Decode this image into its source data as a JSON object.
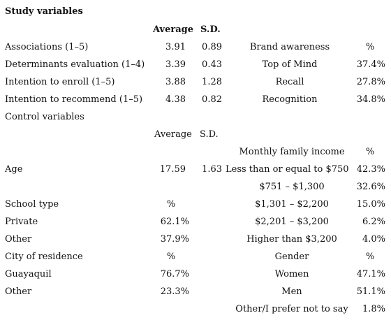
{
  "title": "Study variables",
  "study": {
    "header": {
      "average": "Average",
      "sd": "S.D."
    },
    "rows": [
      {
        "label": "Associations (1–5)",
        "average": "3.91",
        "sd": "0.89"
      },
      {
        "label": "Determinants evaluation (1–4)",
        "average": "3.39",
        "sd": "0.43"
      },
      {
        "label": "Intention to enroll (1–5)",
        "average": "3.88",
        "sd": "1.28"
      },
      {
        "label": "Intention to recommend (1–5)",
        "average": "4.38",
        "sd": "0.82"
      }
    ]
  },
  "brand_awareness": {
    "header": "Brand awareness",
    "pct_header": "%",
    "rows": [
      {
        "label": "Top of Mind",
        "pct": "37.4%"
      },
      {
        "label": "Recall",
        "pct": "27.8%"
      },
      {
        "label": "Recognition",
        "pct": "34.8%"
      }
    ]
  },
  "control": {
    "title": "Control variables",
    "header": {
      "average": "Average",
      "sd": "S.D."
    },
    "age": {
      "label": "Age",
      "average": "17.59",
      "sd": "1.63"
    }
  },
  "income": {
    "header": "Monthly family income",
    "pct_header": "%",
    "rows": [
      {
        "label": "Less than or equal to $750",
        "pct": "42.3%"
      },
      {
        "label": "$751 – $1,300",
        "pct": "32.6%"
      },
      {
        "label": "$1,301 – $2,200",
        "pct": "15.0%"
      },
      {
        "label": "$2,201 – $3,200",
        "pct": "6.2%"
      },
      {
        "label": "Higher than $3,200",
        "pct": "4.0%"
      }
    ]
  },
  "school": {
    "header": "School type",
    "pct_header": "%",
    "rows": [
      {
        "label": "Private",
        "pct": "62.1%"
      },
      {
        "label": "Other",
        "pct": "37.9%"
      }
    ]
  },
  "city": {
    "header": "City of residence",
    "pct_header": "%",
    "rows": [
      {
        "label": "Guayaquil",
        "pct": "76.7%"
      },
      {
        "label": "Other",
        "pct": "23.3%"
      }
    ]
  },
  "gender": {
    "header": "Gender",
    "pct_header": "%",
    "rows": [
      {
        "label": "Women",
        "pct": "47.1%"
      },
      {
        "label": "Men",
        "pct": "51.1%"
      },
      {
        "label": "Other/I prefer not to say",
        "pct": "1.8%"
      }
    ]
  }
}
